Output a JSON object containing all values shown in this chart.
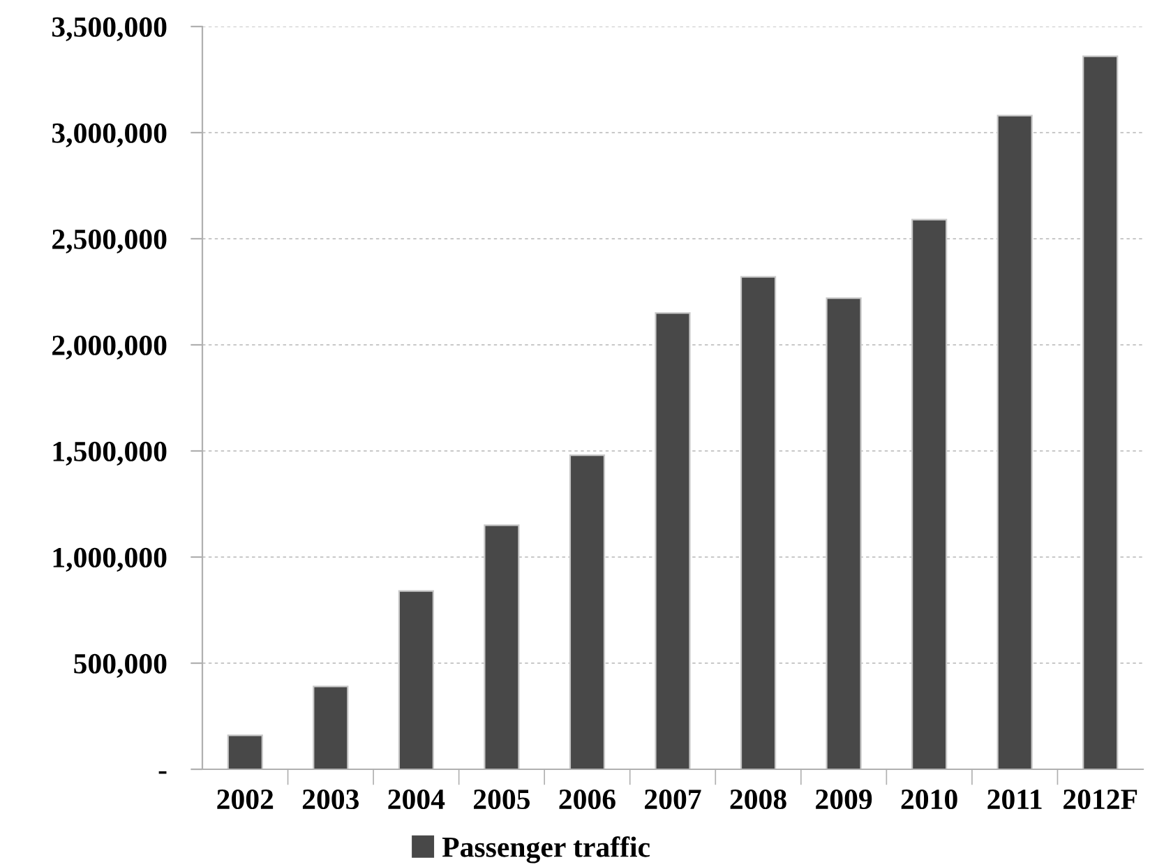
{
  "chart_data": {
    "type": "bar",
    "categories": [
      "2002",
      "2003",
      "2004",
      "2005",
      "2006",
      "2007",
      "2008",
      "2009",
      "2010",
      "2011",
      "2012F"
    ],
    "series": [
      {
        "name": "Passenger traffic",
        "color": "#484848",
        "values": [
          160000,
          390000,
          840000,
          1150000,
          1480000,
          2150000,
          2320000,
          2220000,
          2590000,
          3080000,
          3360000
        ]
      }
    ],
    "ylim": [
      0,
      3500000
    ],
    "yticks": [
      {
        "value": 0,
        "label": "-"
      },
      {
        "value": 500000,
        "label": "500,000"
      },
      {
        "value": 1000000,
        "label": "1,000,000"
      },
      {
        "value": 1500000,
        "label": "1,500,000"
      },
      {
        "value": 2000000,
        "label": "2,000,000"
      },
      {
        "value": 2500000,
        "label": "2,500,000"
      },
      {
        "value": 3000000,
        "label": "3,000,000"
      },
      {
        "value": 3500000,
        "label": "3,500,000"
      }
    ],
    "grid": "y",
    "legend": "bottom"
  }
}
